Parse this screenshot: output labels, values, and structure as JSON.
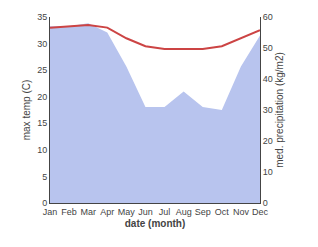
{
  "chart_data": {
    "type": "line",
    "xlabel": "date (month)",
    "ylabel": "max temp (C)",
    "y2label": "med. precipitation (kg/m2)",
    "categories": [
      "Jan",
      "Feb",
      "Mar",
      "Apr",
      "May",
      "Jun",
      "Jul",
      "Aug",
      "Sep",
      "Oct",
      "Nov",
      "Dec"
    ],
    "series": [
      {
        "type": "area",
        "axis": "y2",
        "color": "#b8c4ee",
        "values": [
          57,
          57,
          58,
          55,
          44,
          31,
          31,
          36,
          31,
          30,
          44,
          54
        ]
      },
      {
        "type": "line",
        "color": "#cc4444",
        "values": [
          33.0,
          33.2,
          33.5,
          33.0,
          31.0,
          29.5,
          29.0,
          29.0,
          29.0,
          29.5,
          31.0,
          32.5
        ]
      }
    ],
    "ylim": [
      0,
      35
    ],
    "yticks": [
      0,
      5,
      10,
      15,
      20,
      25,
      30,
      35
    ],
    "y2lim": [
      0,
      60
    ],
    "y2ticks": [
      0,
      10,
      20,
      30,
      40,
      50,
      60
    ],
    "grid": false
  }
}
